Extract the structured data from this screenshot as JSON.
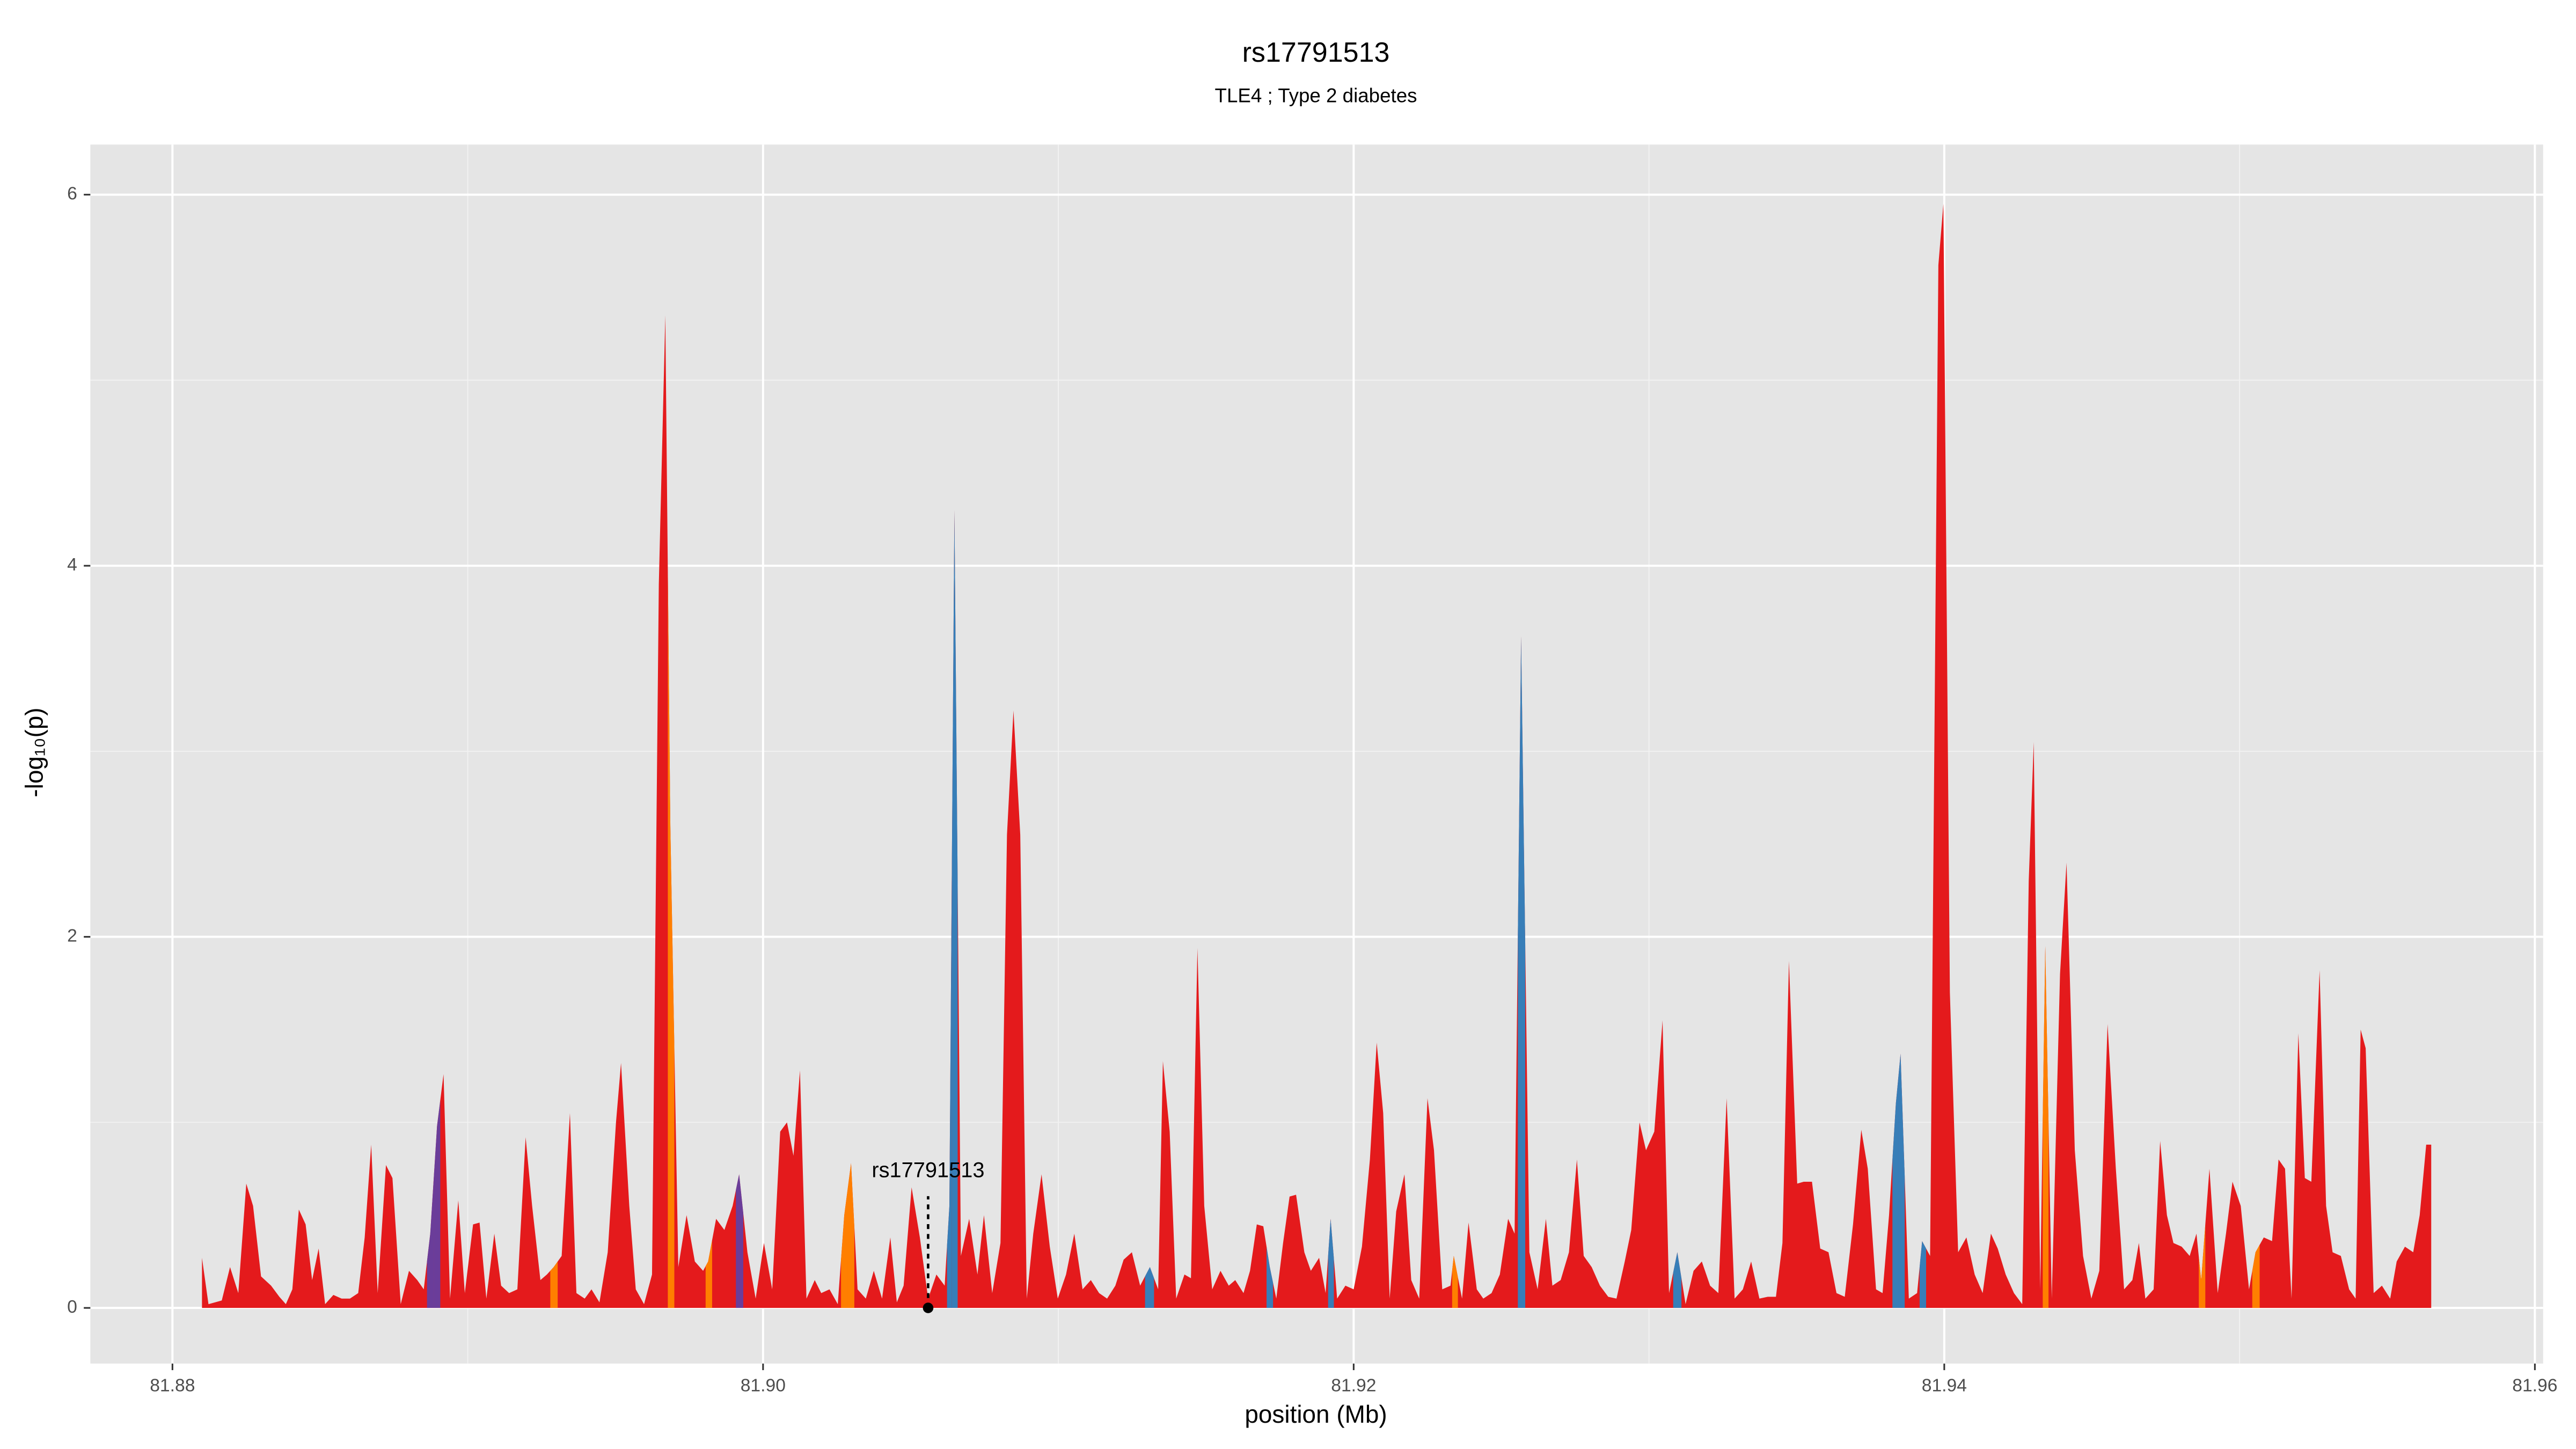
{
  "chart_data": {
    "type": "area",
    "title": "rs17791513",
    "subtitle": "TLE4 ; Type 2 diabetes",
    "x_label": "position (Mb)",
    "y_label": "-log₁₀(p)",
    "xlim": [
      81.87722,
      81.96028
    ],
    "ylim": [
      -0.3,
      6.27
    ],
    "xticks": [
      81.88,
      {
        "value": 81.9,
        "label": "81.90"
      },
      81.92,
      81.94,
      81.96
    ],
    "yticks": [
      0,
      2,
      4,
      6
    ],
    "grid": true,
    "annotation": {
      "text": "rs17791513",
      "x": 81.90559,
      "y": 0
    },
    "x": [
      81.881,
      81.88122,
      81.88167,
      81.88195,
      81.88223,
      81.8825,
      81.88273,
      81.883,
      81.88334,
      81.88362,
      81.88384,
      81.88406,
      81.88428,
      81.88451,
      81.88473,
      81.88495,
      81.88517,
      81.88545,
      81.88573,
      81.88601,
      81.88629,
      81.88651,
      81.88673,
      81.88695,
      81.88723,
      81.88745,
      81.88773,
      81.88801,
      81.88829,
      81.88851,
      81.88873,
      81.88896,
      81.88918,
      81.8894,
      81.88968,
      81.8899,
      81.89018,
      81.8904,
      81.89063,
      81.8909,
      81.89113,
      81.8914,
      81.89168,
      81.89196,
      81.89218,
      81.89246,
      81.89268,
      81.89291,
      81.89318,
      81.89346,
      81.89368,
      81.89396,
      81.89419,
      81.89446,
      81.89474,
      81.89502,
      81.89519,
      81.89547,
      81.89569,
      81.89597,
      81.89624,
      81.89647,
      81.89669,
      81.89686,
      81.89713,
      81.89741,
      81.89769,
      81.89797,
      81.89814,
      81.89841,
      81.89869,
      81.89897,
      81.89919,
      81.89947,
      81.89975,
      81.90003,
      81.90031,
      81.90058,
      81.90081,
      81.90103,
      81.90125,
      81.90147,
      81.90175,
      81.90197,
      81.90225,
      81.90253,
      81.90275,
      81.90298,
      81.9032,
      81.90348,
      81.90375,
      81.90403,
      81.90431,
      81.90453,
      81.90476,
      81.90503,
      81.90531,
      81.90559,
      81.90587,
      81.90615,
      81.90631,
      81.90648,
      81.9067,
      81.90698,
      81.90726,
      81.90748,
      81.90776,
      81.90804,
      81.90826,
      81.90848,
      81.90871,
      81.90893,
      81.90915,
      81.90943,
      81.90971,
      81.90998,
      81.91026,
      81.91054,
      81.91082,
      81.9111,
      81.91138,
      81.91165,
      81.91193,
      81.91221,
      81.91249,
      81.91277,
      81.9131,
      81.91338,
      81.91354,
      81.91377,
      81.91399,
      81.91427,
      81.91449,
      81.91471,
      81.91494,
      81.91521,
      81.91549,
      81.91577,
      81.91599,
      81.91627,
      81.91649,
      81.91672,
      81.91694,
      81.91716,
      81.91738,
      81.91761,
      81.91783,
      81.91805,
      81.91833,
      81.91855,
      81.91883,
      81.91905,
      81.91922,
      81.91944,
      81.91972,
      81.92,
      81.92028,
      81.92055,
      81.92078,
      81.921,
      81.92122,
      81.92144,
      81.92172,
      81.92195,
      81.92222,
      81.9225,
      81.92272,
      81.923,
      81.92328,
      81.92339,
      81.92367,
      81.92389,
      81.92417,
      81.92439,
      81.92467,
      81.92495,
      81.92523,
      81.92545,
      81.92567,
      81.92595,
      81.92623,
      81.92651,
      81.92673,
      81.92701,
      81.92729,
      81.92756,
      81.92779,
      81.92806,
      81.92834,
      81.92862,
      81.9289,
      81.92918,
      81.9294,
      81.92968,
      81.9299,
      81.93018,
      81.93046,
      81.93068,
      81.93096,
      81.93124,
      81.93151,
      81.93179,
      81.93207,
      81.93235,
      81.93263,
      81.9329,
      81.93318,
      81.93346,
      81.93374,
      81.93402,
      81.9343,
      81.93452,
      81.93474,
      81.93502,
      81.93524,
      81.93552,
      81.9358,
      81.93608,
      81.93635,
      81.93663,
      81.93691,
      81.93719,
      81.93741,
      81.93769,
      81.93791,
      81.93813,
      81.93836,
      81.93852,
      81.9388,
      81.93908,
      81.93925,
      81.93952,
      81.9398,
      81.93997,
      81.94019,
      81.94047,
      81.94075,
      81.94103,
      81.9413,
      81.94158,
      81.94181,
      81.94208,
      81.94236,
      81.94264,
      81.94286,
      81.94303,
      81.94325,
      81.94342,
      81.94364,
      81.94392,
      81.94414,
      81.94442,
      81.9447,
      81.94498,
      81.94525,
      81.94553,
      81.94581,
      81.94609,
      81.94637,
      81.94659,
      81.94681,
      81.94709,
      81.94731,
      81.94754,
      81.94776,
      81.94804,
      81.94831,
      81.94854,
      81.9487,
      81.94898,
      81.94926,
      81.94954,
      81.94976,
      81.95004,
      81.95032,
      81.95054,
      81.95082,
      81.9511,
      81.95132,
      81.95154,
      81.95176,
      81.95199,
      81.95221,
      81.95243,
      81.95271,
      81.95293,
      81.95315,
      81.95343,
      81.95371,
      81.95393,
      81.9541,
      81.95427,
      81.95454,
      81.95482,
      81.9551,
      81.95532,
      81.9556,
      81.95588,
      81.9561,
      81.95632,
      81.95649
    ],
    "values": [
      0.27,
      0.02,
      0.04,
      0.22,
      0.08,
      0.67,
      0.55,
      0.17,
      0.12,
      0.06,
      0.02,
      0.1,
      0.53,
      0.45,
      0.15,
      0.32,
      0.02,
      0.07,
      0.05,
      0.05,
      0.08,
      0.38,
      0.88,
      0.08,
      0.77,
      0.7,
      0.02,
      0.2,
      0.15,
      0.1,
      0.4,
      0.98,
      1.26,
      0.05,
      0.58,
      0.08,
      0.45,
      0.46,
      0.05,
      0.4,
      0.12,
      0.08,
      0.1,
      0.92,
      0.55,
      0.15,
      0.18,
      0.22,
      0.28,
      1.05,
      0.08,
      0.05,
      0.1,
      0.03,
      0.3,
      1.0,
      1.32,
      0.55,
      0.1,
      0.02,
      0.18,
      3.9,
      5.35,
      2.6,
      0.22,
      0.5,
      0.25,
      0.2,
      0.25,
      0.48,
      0.42,
      0.55,
      0.72,
      0.3,
      0.05,
      0.35,
      0.1,
      0.95,
      1.0,
      0.82,
      1.28,
      0.05,
      0.15,
      0.08,
      0.1,
      0.02,
      0.5,
      0.78,
      0.1,
      0.05,
      0.2,
      0.05,
      0.38,
      0.03,
      0.12,
      0.65,
      0.38,
      0.05,
      0.18,
      0.12,
      0.55,
      4.3,
      0.28,
      0.48,
      0.18,
      0.5,
      0.08,
      0.35,
      2.55,
      3.22,
      2.55,
      0.05,
      0.4,
      0.72,
      0.33,
      0.05,
      0.18,
      0.4,
      0.1,
      0.15,
      0.08,
      0.05,
      0.12,
      0.26,
      0.3,
      0.12,
      0.22,
      0.1,
      1.33,
      0.95,
      0.05,
      0.18,
      0.16,
      1.94,
      0.55,
      0.1,
      0.2,
      0.12,
      0.15,
      0.08,
      0.2,
      0.45,
      0.44,
      0.22,
      0.05,
      0.35,
      0.6,
      0.61,
      0.3,
      0.2,
      0.27,
      0.08,
      0.48,
      0.05,
      0.12,
      0.1,
      0.33,
      0.8,
      1.43,
      1.05,
      0.05,
      0.52,
      0.72,
      0.15,
      0.05,
      1.13,
      0.85,
      0.1,
      0.12,
      0.28,
      0.05,
      0.46,
      0.1,
      0.05,
      0.08,
      0.18,
      0.48,
      0.4,
      3.62,
      0.3,
      0.1,
      0.48,
      0.12,
      0.15,
      0.3,
      0.8,
      0.28,
      0.22,
      0.12,
      0.06,
      0.05,
      0.25,
      0.42,
      1.0,
      0.85,
      0.95,
      1.55,
      0.08,
      0.3,
      0.02,
      0.2,
      0.25,
      0.12,
      0.08,
      1.13,
      0.05,
      0.1,
      0.25,
      0.05,
      0.06,
      0.06,
      0.35,
      1.87,
      0.67,
      0.68,
      0.68,
      0.32,
      0.3,
      0.08,
      0.06,
      0.45,
      0.96,
      0.75,
      0.1,
      0.08,
      0.5,
      1.1,
      1.37,
      0.05,
      0.08,
      0.36,
      0.28,
      5.62,
      5.95,
      1.7,
      0.3,
      0.38,
      0.18,
      0.08,
      0.4,
      0.32,
      0.18,
      0.08,
      0.02,
      2.3,
      3.05,
      0.1,
      1.95,
      0.05,
      1.8,
      2.4,
      0.85,
      0.28,
      0.05,
      0.2,
      1.53,
      0.75,
      0.1,
      0.15,
      0.35,
      0.05,
      0.1,
      0.9,
      0.5,
      0.35,
      0.33,
      0.28,
      0.4,
      0.15,
      0.75,
      0.08,
      0.4,
      0.68,
      0.55,
      0.1,
      0.3,
      0.38,
      0.36,
      0.8,
      0.75,
      0.05,
      1.48,
      0.7,
      0.68,
      1.82,
      0.55,
      0.3,
      0.28,
      0.1,
      0.05,
      1.5,
      1.4,
      0.08,
      0.12,
      0.05,
      0.25,
      0.33,
      0.3,
      0.5,
      0.88,
      0.88
    ],
    "color": "#e41a1c",
    "colors": [
      "#e41a1c",
      "#e41a1c",
      "#e41a1c",
      "#e41a1c",
      "#e41a1c",
      "#e41a1c",
      "#e41a1c",
      "#e41a1c",
      "#e41a1c",
      "#e41a1c",
      "#e41a1c",
      "#e41a1c",
      "#e41a1c",
      "#e41a1c",
      "#e41a1c",
      "#e41a1c",
      "#e41a1c",
      "#e41a1c",
      "#e41a1c",
      "#e41a1c",
      "#e41a1c",
      "#e41a1c",
      "#e41a1c",
      "#e41a1c",
      "#e41a1c",
      "#e41a1c",
      "#e41a1c",
      "#e41a1c",
      "#e41a1c",
      "#e41a1c",
      "#6a3d9a",
      "#6a3d9a",
      "#e41a1c",
      "#e41a1c",
      "#e41a1c",
      "#e41a1c",
      "#e41a1c",
      "#e41a1c",
      "#e41a1c",
      "#e41a1c",
      "#e41a1c",
      "#e41a1c",
      "#e41a1c",
      "#e41a1c",
      "#e41a1c",
      "#e41a1c",
      "#e41a1c",
      "#ff7f00",
      "#e41a1c",
      "#e41a1c",
      "#e41a1c",
      "#e41a1c",
      "#e41a1c",
      "#e41a1c",
      "#e41a1c",
      "#e41a1c",
      "#e41a1c",
      "#e41a1c",
      "#e41a1c",
      "#e41a1c",
      "#e41a1c",
      "#e41a1c",
      "#e41a1c",
      "#ff7f00",
      "#e41a1c",
      "#e41a1c",
      "#e41a1c",
      "#e41a1c",
      "#ff7f00",
      "#e41a1c",
      "#e41a1c",
      "#e41a1c",
      "#6a3d9a",
      "#e41a1c",
      "#e41a1c",
      "#e41a1c",
      "#e41a1c",
      "#e41a1c",
      "#e41a1c",
      "#e41a1c",
      "#e41a1c",
      "#e41a1c",
      "#e41a1c",
      "#e41a1c",
      "#e41a1c",
      "#e41a1c",
      "#ff7f00",
      "#ff7f00",
      "#e41a1c",
      "#e41a1c",
      "#e41a1c",
      "#e41a1c",
      "#e41a1c",
      "#e41a1c",
      "#e41a1c",
      "#e41a1c",
      "#e41a1c",
      "#e41a1c",
      "#e41a1c",
      "#e41a1c",
      "#377eb8",
      "#377eb8",
      "#e41a1c",
      "#e41a1c",
      "#e41a1c",
      "#e41a1c",
      "#e41a1c",
      "#e41a1c",
      "#e41a1c",
      "#e41a1c",
      "#e41a1c",
      "#e41a1c",
      "#e41a1c",
      "#e41a1c",
      "#e41a1c",
      "#e41a1c",
      "#e41a1c",
      "#e41a1c",
      "#e41a1c",
      "#e41a1c",
      "#e41a1c",
      "#e41a1c",
      "#e41a1c",
      "#e41a1c",
      "#e41a1c",
      "#e41a1c",
      "#377eb8",
      "#e41a1c",
      "#e41a1c",
      "#e41a1c",
      "#e41a1c",
      "#e41a1c",
      "#e41a1c",
      "#e41a1c",
      "#e41a1c",
      "#e41a1c",
      "#e41a1c",
      "#e41a1c",
      "#e41a1c",
      "#e41a1c",
      "#e41a1c",
      "#e41a1c",
      "#e41a1c",
      "#377eb8",
      "#e41a1c",
      "#e41a1c",
      "#e41a1c",
      "#e41a1c",
      "#e41a1c",
      "#e41a1c",
      "#e41a1c",
      "#e41a1c",
      "#377eb8",
      "#e41a1c",
      "#e41a1c",
      "#e41a1c",
      "#e41a1c",
      "#e41a1c",
      "#e41a1c",
      "#e41a1c",
      "#e41a1c",
      "#e41a1c",
      "#e41a1c",
      "#e41a1c",
      "#e41a1c",
      "#e41a1c",
      "#e41a1c",
      "#e41a1c",
      "#e41a1c",
      "#ff7f00",
      "#e41a1c",
      "#e41a1c",
      "#e41a1c",
      "#e41a1c",
      "#e41a1c",
      "#e41a1c",
      "#e41a1c",
      "#e41a1c",
      "#377eb8",
      "#e41a1c",
      "#e41a1c",
      "#e41a1c",
      "#e41a1c",
      "#e41a1c",
      "#e41a1c",
      "#e41a1c",
      "#e41a1c",
      "#e41a1c",
      "#e41a1c",
      "#e41a1c",
      "#e41a1c",
      "#e41a1c",
      "#e41a1c",
      "#e41a1c",
      "#e41a1c",
      "#e41a1c",
      "#e41a1c",
      "#e41a1c",
      "#377eb8",
      "#e41a1c",
      "#e41a1c",
      "#e41a1c",
      "#e41a1c",
      "#e41a1c",
      "#e41a1c",
      "#e41a1c",
      "#e41a1c",
      "#e41a1c",
      "#e41a1c",
      "#e41a1c",
      "#e41a1c",
      "#e41a1c",
      "#e41a1c",
      "#e41a1c",
      "#e41a1c",
      "#e41a1c",
      "#e41a1c",
      "#e41a1c",
      "#e41a1c",
      "#e41a1c",
      "#e41a1c",
      "#e41a1c",
      "#e41a1c",
      "#e41a1c",
      "#e41a1c",
      "#e41a1c",
      "#377eb8",
      "#377eb8",
      "#e41a1c",
      "#e41a1c",
      "#377eb8",
      "#e41a1c",
      "#e41a1c",
      "#e41a1c",
      "#e41a1c",
      "#e41a1c",
      "#e41a1c",
      "#e41a1c",
      "#e41a1c",
      "#e41a1c",
      "#e41a1c",
      "#e41a1c",
      "#e41a1c",
      "#e41a1c",
      "#e41a1c",
      "#e41a1c",
      "#e41a1c",
      "#ff7f00",
      "#e41a1c",
      "#e41a1c",
      "#e41a1c",
      "#e41a1c",
      "#e41a1c",
      "#e41a1c",
      "#e41a1c",
      "#e41a1c",
      "#e41a1c",
      "#e41a1c",
      "#e41a1c",
      "#e41a1c",
      "#e41a1c",
      "#e41a1c",
      "#e41a1c",
      "#e41a1c",
      "#e41a1c",
      "#e41a1c",
      "#e41a1c",
      "#e41a1c",
      "#ff7f00",
      "#e41a1c",
      "#e41a1c",
      "#e41a1c",
      "#e41a1c",
      "#e41a1c",
      "#e41a1c",
      "#ff7f00",
      "#e41a1c",
      "#e41a1c",
      "#e41a1c",
      "#e41a1c",
      "#e41a1c",
      "#e41a1c",
      "#e41a1c",
      "#e41a1c",
      "#e41a1c",
      "#e41a1c",
      "#e41a1c",
      "#e41a1c",
      "#e41a1c",
      "#e41a1c",
      "#e41a1c",
      "#e41a1c",
      "#e41a1c",
      "#e41a1c",
      "#e41a1c",
      "#e41a1c",
      "#e41a1c",
      "#e41a1c",
      "#e41a1c",
      "#e41a1c",
      "#e41a1c"
    ]
  }
}
